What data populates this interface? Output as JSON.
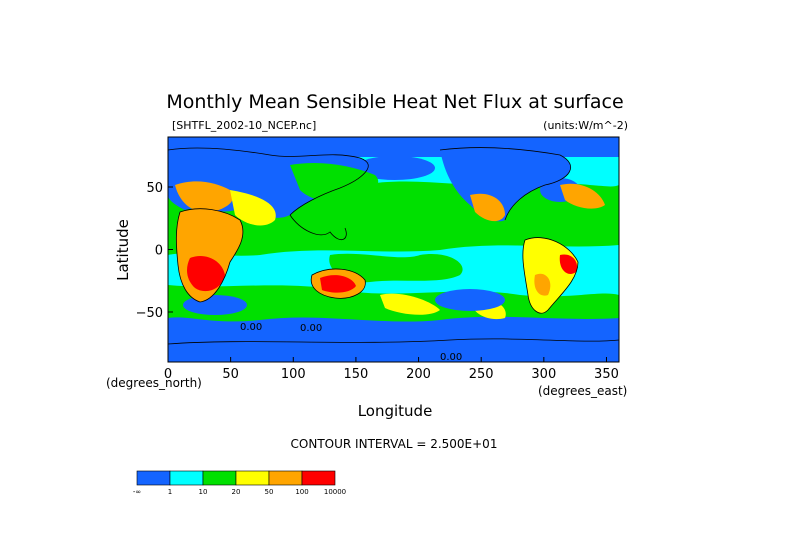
{
  "chart_data": {
    "type": "heatmap",
    "title": "Monthly Mean Sensible Heat Net Flux at surface",
    "file_label": "[SHTFL_2002-10_NCEP.nc]",
    "units_label": "(units:W/m^-2)",
    "xlabel": "Longitude",
    "ylabel": "Latitude",
    "x_unit_label": "(degrees_east)",
    "y_unit_label": "(degrees_north)",
    "xlim": [
      0,
      360
    ],
    "ylim": [
      -90,
      90
    ],
    "x_ticks": [
      0,
      50,
      100,
      150,
      200,
      250,
      300,
      350
    ],
    "y_ticks": [
      50,
      0,
      -50
    ],
    "contour_interval": "CONTOUR INTERVAL = 2.500E+01",
    "contour_labels": [
      "0.00",
      "0.00",
      "0.00"
    ],
    "colorbar": {
      "levels": [
        "-∞",
        "1",
        "10",
        "20",
        "50",
        "100",
        "10000"
      ],
      "colors": [
        "#1464ff",
        "#00ffff",
        "#00e000",
        "#ffff00",
        "#ffa500",
        "#ff0000"
      ]
    }
  }
}
